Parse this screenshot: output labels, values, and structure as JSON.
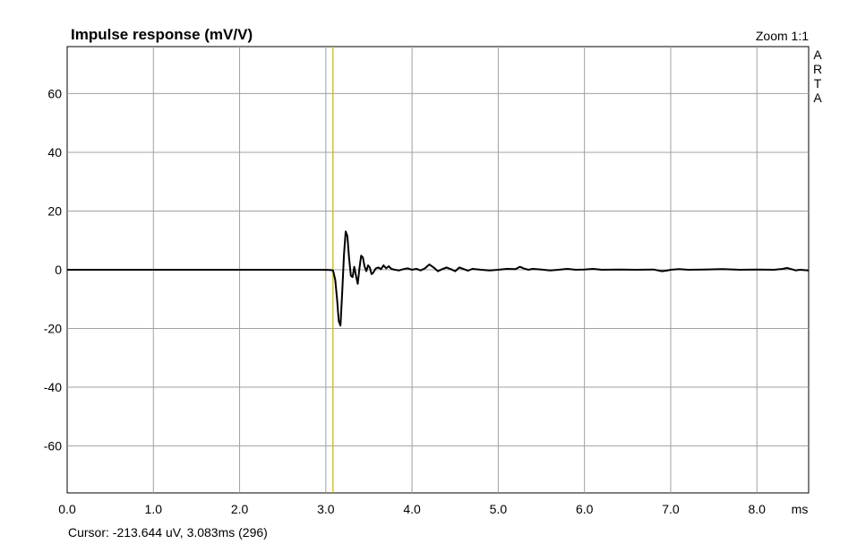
{
  "chart_data": {
    "type": "line",
    "title": "Impulse response (mV/V)",
    "zoom_label": "Zoom 1:1",
    "brand_letters": [
      "A",
      "R",
      "T",
      "A"
    ],
    "xlabel": "ms",
    "ylabel": "",
    "xlim": [
      0,
      8.6
    ],
    "ylim": [
      -76,
      76
    ],
    "x_ticks": [
      0,
      1,
      2,
      3,
      4,
      5,
      6,
      7,
      8
    ],
    "x_tick_labels": [
      "0.0",
      "1.0",
      "2.0",
      "3.0",
      "4.0",
      "5.0",
      "6.0",
      "7.0",
      "8.0"
    ],
    "y_ticks": [
      60,
      40,
      20,
      0,
      -20,
      -40,
      -60
    ],
    "y_tick_labels": [
      "60",
      "40",
      "20",
      "0",
      "-20",
      "-40",
      "-60"
    ],
    "grid": true,
    "cursor": {
      "x": 3.083,
      "label": "Cursor: -213.644 uV, 3.083ms (296)",
      "color": "#c8b400"
    },
    "series": [
      {
        "color": "#000000",
        "x": [
          0,
          1.0,
          2.0,
          2.95,
          3.05,
          3.083,
          3.09,
          3.11,
          3.13,
          3.15,
          3.17,
          3.19,
          3.21,
          3.23,
          3.25,
          3.27,
          3.29,
          3.31,
          3.33,
          3.35,
          3.37,
          3.39,
          3.41,
          3.43,
          3.45,
          3.47,
          3.49,
          3.51,
          3.53,
          3.55,
          3.58,
          3.61,
          3.64,
          3.67,
          3.7,
          3.73,
          3.76,
          3.8,
          3.85,
          3.9,
          3.95,
          4.0,
          4.05,
          4.1,
          4.15,
          4.2,
          4.25,
          4.3,
          4.35,
          4.4,
          4.45,
          4.5,
          4.55,
          4.6,
          4.65,
          4.7,
          4.8,
          4.9,
          5.0,
          5.1,
          5.2,
          5.25,
          5.3,
          5.35,
          5.4,
          5.5,
          5.6,
          5.7,
          5.8,
          5.9,
          6.0,
          6.1,
          6.2,
          6.4,
          6.6,
          6.8,
          6.85,
          6.9,
          6.95,
          7.0,
          7.1,
          7.2,
          7.4,
          7.6,
          7.8,
          8.0,
          8.2,
          8.3,
          8.35,
          8.4,
          8.45,
          8.5,
          8.6
        ],
        "values": [
          0,
          0,
          0,
          0,
          -0.1,
          -0.2,
          -1.0,
          -3.5,
          -10.0,
          -17.5,
          -19.0,
          -8.0,
          5.0,
          13.0,
          11.5,
          4.0,
          -2.0,
          -2.5,
          1.0,
          -2.0,
          -4.8,
          0.5,
          4.8,
          4.2,
          1.0,
          -0.5,
          1.5,
          0.8,
          -1.5,
          -1.0,
          0.5,
          0.8,
          0.2,
          1.5,
          0.5,
          1.2,
          0.3,
          0.0,
          -0.2,
          0.2,
          0.5,
          0.0,
          0.3,
          -0.2,
          0.5,
          1.8,
          0.8,
          -0.5,
          0.2,
          0.8,
          0.2,
          -0.5,
          0.8,
          0.2,
          -0.3,
          0.3,
          0.0,
          -0.2,
          0.0,
          0.3,
          0.2,
          1.0,
          0.4,
          0.0,
          0.3,
          0.1,
          -0.2,
          0.0,
          0.3,
          0.0,
          0.1,
          0.3,
          0.0,
          0.1,
          0.0,
          0.1,
          -0.2,
          -0.5,
          -0.3,
          0.0,
          0.2,
          0.0,
          0.1,
          0.2,
          0.0,
          0.1,
          0.0,
          0.3,
          0.6,
          0.2,
          -0.2,
          0.0,
          -0.2
        ]
      }
    ]
  }
}
